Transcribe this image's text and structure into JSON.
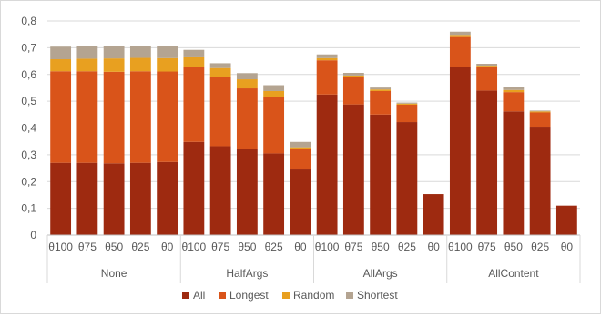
{
  "chart_data": {
    "type": "bar",
    "stacked": true,
    "title": "",
    "xlabel": "",
    "ylabel": "",
    "ylim": [
      0,
      0.8
    ],
    "yticks": [
      "0",
      "0,1",
      "0,2",
      "0,3",
      "0,4",
      "0,5",
      "0,6",
      "0,7",
      "0,8"
    ],
    "grid": true,
    "legend_position": "bottom",
    "groups": [
      {
        "name": "None",
        "categories": [
          "θ100",
          "θ75",
          "θ50",
          "θ25",
          "θ0"
        ]
      },
      {
        "name": "HalfArgs",
        "categories": [
          "θ100",
          "θ75",
          "θ50",
          "θ25",
          "θ0"
        ]
      },
      {
        "name": "AllArgs",
        "categories": [
          "θ100",
          "θ75",
          "θ50",
          "θ25",
          "θ0"
        ]
      },
      {
        "name": "AllContent",
        "categories": [
          "θ100",
          "θ75",
          "θ50",
          "θ25",
          "θ0"
        ]
      }
    ],
    "series": [
      {
        "name": "All",
        "color": "#9e2a10",
        "values": [
          0.27,
          0.27,
          0.268,
          0.27,
          0.273,
          0.348,
          0.332,
          0.32,
          0.305,
          0.245,
          0.525,
          0.488,
          0.45,
          0.422,
          0.153,
          0.628,
          0.54,
          0.462,
          0.405,
          0.11
        ]
      },
      {
        "name": "Longest",
        "color": "#d9541a",
        "values": [
          0.342,
          0.342,
          0.342,
          0.342,
          0.338,
          0.28,
          0.258,
          0.228,
          0.21,
          0.078,
          0.128,
          0.102,
          0.088,
          0.065,
          0,
          0.112,
          0.09,
          0.072,
          0.053,
          0
        ]
      },
      {
        "name": "Random",
        "color": "#e8a020",
        "values": [
          0.045,
          0.047,
          0.05,
          0.05,
          0.05,
          0.036,
          0.034,
          0.034,
          0.023,
          0.005,
          0.008,
          0.006,
          0.006,
          0.004,
          0,
          0.008,
          0.003,
          0.008,
          0.004,
          0
        ]
      },
      {
        "name": "Shortest",
        "color": "#b4a491",
        "values": [
          0.047,
          0.048,
          0.045,
          0.046,
          0.046,
          0.028,
          0.018,
          0.023,
          0.022,
          0.02,
          0.014,
          0.01,
          0.007,
          0.004,
          0,
          0.012,
          0.007,
          0.01,
          0.003,
          0
        ]
      }
    ]
  }
}
